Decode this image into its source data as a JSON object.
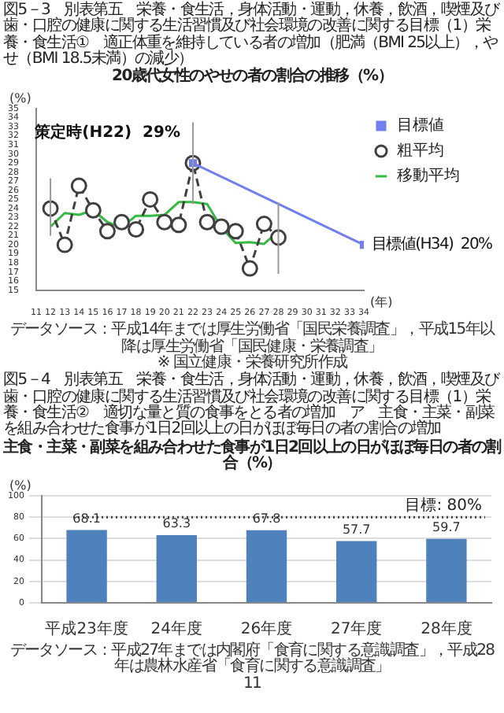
{
  "chart_data": [
    {
      "type": "line",
      "subtitle": "図5－3　別表第五　栄養・食生活，身体活動・運動，休養，飲酒，喫煙及び歯・口腔の健康に関する生活習慣及び社会環境の改善に関する目標（1）栄養・食生活①　適正体重を維持している者の増加（肥満（BMI 25以上），やせ（BMI 18.5未満）の減少）",
      "title": "20歳代女性のやせの者の割合の推移（%）",
      "ylabel": "(%)",
      "xlabel": "(年)",
      "xlim": [
        11,
        34
      ],
      "xticks": [
        11,
        12,
        13,
        14,
        15,
        16,
        17,
        18,
        19,
        20,
        21,
        22,
        23,
        24,
        25,
        26,
        27,
        28,
        29,
        30,
        31,
        32,
        33,
        34
      ],
      "ylim": [
        15,
        35
      ],
      "yticks": [
        15,
        16,
        17,
        18,
        19,
        20,
        21,
        22,
        23,
        24,
        25,
        26,
        27,
        28,
        29,
        30,
        31,
        32,
        33,
        34,
        35
      ],
      "grid": false,
      "legend": "top right",
      "series": [
        {
          "name": "目標値",
          "color": "#6f7ff0",
          "marker": "square",
          "line_style": "solid",
          "x": [
            22,
            34
          ],
          "values": [
            29,
            20
          ]
        },
        {
          "name": "粗平均",
          "color": "#404040",
          "marker": "circle",
          "line_style": "dashed",
          "x": [
            12,
            13,
            14,
            15,
            16,
            17,
            18,
            19,
            20,
            21,
            22,
            23,
            24,
            25,
            26,
            27,
            28
          ],
          "values": [
            24,
            20,
            26.5,
            23.8,
            21.5,
            22.5,
            21.7,
            25,
            22.5,
            22.2,
            29,
            22.5,
            22,
            21.5,
            17.4,
            22.3,
            20.8
          ],
          "errors": [
            [
              21,
              27.3
            ],
            null,
            null,
            null,
            null,
            null,
            null,
            null,
            null,
            null,
            [
              24.5,
              33.5
            ],
            null,
            null,
            null,
            null,
            null,
            [
              16.8,
              24.7
            ]
          ]
        },
        {
          "name": "移動平均",
          "color": "#33bb44",
          "marker": "none",
          "line_style": "solid",
          "x": [
            12,
            13,
            14,
            15,
            16,
            17,
            18,
            19,
            20,
            21,
            22,
            23,
            24,
            25,
            26,
            27,
            28
          ],
          "values": [
            22,
            23.5,
            23.3,
            23.8,
            22.5,
            21.9,
            23.2,
            23.2,
            23.3,
            24.7,
            24.7,
            24.5,
            21.9,
            20.2,
            20.3,
            20.1,
            21.5
          ]
        }
      ],
      "annotations": [
        {
          "text": "策定時(H22)  29%",
          "x": 22,
          "y": 29
        },
        {
          "text": "目標値(H34)  20%",
          "x": 34,
          "y": 20
        },
        "データソース：平成14年までは厚生労働省「国民栄養調査」，平成15年以降は厚生労働省「国民健康・栄養調査」",
        "※ 国立健康・栄養研究所作成"
      ]
    },
    {
      "type": "bar",
      "subtitle": "図5－4　別表第五　栄養・食生活，身体活動・運動，休養，飲酒，喫煙及び歯・口腔の健康に関する生活習慣及び社会環境の改善に関する目標（1）栄養・食生活②　適切な量と質の食事をとる者の増加　ア　主食・主菜・副菜を組み合わせた食事が1日2回以上の日がほぼ毎日の者の割合の増加",
      "title": "主食・主菜・副菜を組み合わせた食事が1日2回以上の日がほぼ毎日の者の割合（%）",
      "ylabel": "(%)",
      "categories": [
        "平成23年度",
        "24年度",
        "26年度",
        "27年度",
        "28年度"
      ],
      "values": [
        68.1,
        63.3,
        67.8,
        57.7,
        59.7
      ],
      "color": "#4f81bd",
      "ylim": [
        0,
        100
      ],
      "yticks": [
        0,
        20,
        40,
        60,
        80,
        100
      ],
      "grid": "y",
      "data_labels": true,
      "ref_lines": [
        {
          "axis": "y",
          "value": 80,
          "label": "目標: 80%",
          "color": "#404040",
          "line_style": "dotted"
        }
      ],
      "annotations": [
        "データソース：平成27年までは内閣府「食育に関する意識調査」，平成28年は農林水産省「食育に関する意識調査」",
        "11"
      ]
    }
  ]
}
